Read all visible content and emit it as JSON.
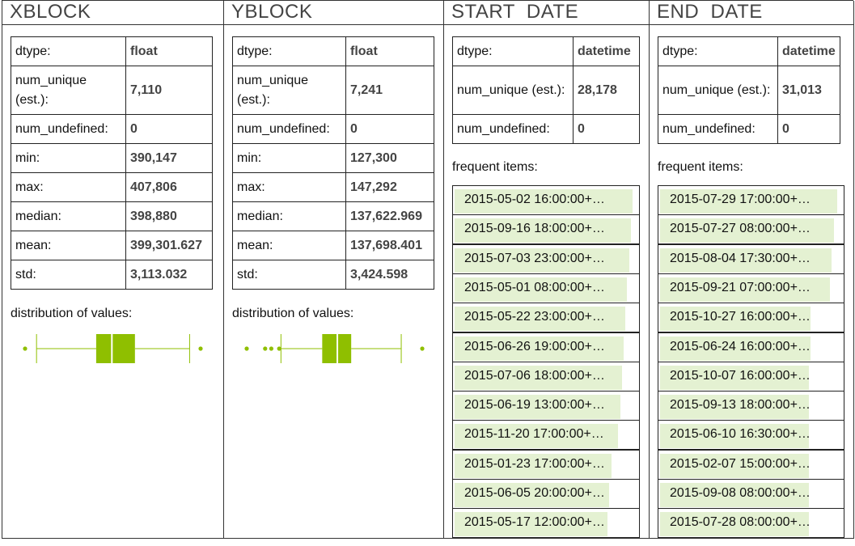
{
  "columns": [
    {
      "title": "XBLOCK",
      "stats": [
        {
          "label": "dtype:",
          "value": "float"
        },
        {
          "label": "num_unique (est.):",
          "value": "7,110"
        },
        {
          "label": "num_undefined:",
          "value": "0"
        },
        {
          "label": "min:",
          "value": "390,147"
        },
        {
          "label": "max:",
          "value": "407,806"
        },
        {
          "label": "median:",
          "value": "398,880"
        },
        {
          "label": "mean:",
          "value": "399,301.627"
        },
        {
          "label": "std:",
          "value": "3,113.032"
        }
      ],
      "distribution_label": "distribution of values:"
    },
    {
      "title": "YBLOCK",
      "stats": [
        {
          "label": "dtype:",
          "value": "float"
        },
        {
          "label": "num_unique (est.):",
          "value": "7,241"
        },
        {
          "label": "num_undefined:",
          "value": "0"
        },
        {
          "label": "min:",
          "value": "127,300"
        },
        {
          "label": "max:",
          "value": "147,292"
        },
        {
          "label": "median:",
          "value": "137,622.969"
        },
        {
          "label": "mean:",
          "value": "137,698.401"
        },
        {
          "label": "std:",
          "value": "3,424.598"
        }
      ],
      "distribution_label": "distribution of values:"
    },
    {
      "title": "START  DATE",
      "stats": [
        {
          "label": "dtype:",
          "value": "datetime"
        },
        {
          "label": "num_unique (est.):",
          "value": "28,178"
        },
        {
          "label": "num_undefined:",
          "value": "0"
        }
      ],
      "frequent_label": "frequent items:",
      "frequent": [
        {
          "text": "2015-05-02 16:00:00+…",
          "share": 1.0
        },
        {
          "text": "2015-09-16 18:00:00+…",
          "share": 0.99
        },
        {
          "text": "2015-07-03 23:00:00+…",
          "share": 0.98
        },
        {
          "text": "2015-05-01 08:00:00+…",
          "share": 0.97
        },
        {
          "text": "2015-05-22 23:00:00+…",
          "share": 0.96
        },
        {
          "text": "2015-06-26 19:00:00+…",
          "share": 0.95
        },
        {
          "text": "2015-07-06 18:00:00+…",
          "share": 0.94
        },
        {
          "text": "2015-06-19 13:00:00+…",
          "share": 0.93
        },
        {
          "text": "2015-11-20 17:00:00+…",
          "share": 0.92
        },
        {
          "text": "2015-01-23 17:00:00+…",
          "share": 0.88
        },
        {
          "text": "2015-06-05 20:00:00+…",
          "share": 0.87
        },
        {
          "text": "2015-05-17 12:00:00+…",
          "share": 0.86
        }
      ]
    },
    {
      "title": "END  DATE",
      "stats": [
        {
          "label": "dtype:",
          "value": "datetime"
        },
        {
          "label": "num_unique (est.):",
          "value": "31,013"
        },
        {
          "label": "num_undefined:",
          "value": "0"
        }
      ],
      "frequent_label": "frequent items:",
      "frequent": [
        {
          "text": "2015-07-29 17:00:00+…",
          "share": 1.0
        },
        {
          "text": "2015-07-27 08:00:00+…",
          "share": 0.98
        },
        {
          "text": "2015-08-04 17:30:00+…",
          "share": 0.97
        },
        {
          "text": "2015-09-21 07:00:00+…",
          "share": 0.96
        },
        {
          "text": "2015-10-27 16:00:00+…",
          "share": 0.85
        },
        {
          "text": "2015-06-24 16:00:00+…",
          "share": 0.85
        },
        {
          "text": "2015-10-07 16:00:00+…",
          "share": 0.84
        },
        {
          "text": "2015-09-13 18:00:00+…",
          "share": 0.84
        },
        {
          "text": "2015-06-10 16:30:00+…",
          "share": 0.84
        },
        {
          "text": "2015-02-07 15:00:00+…",
          "share": 0.84
        },
        {
          "text": "2015-09-08 08:00:00+…",
          "share": 0.84
        },
        {
          "text": "2015-07-28 08:00:00+…",
          "share": 0.84
        }
      ]
    }
  ],
  "boxplots": [
    {
      "min": 390147,
      "q1": 397300,
      "median": 398880,
      "q3": 401200,
      "max": 407806,
      "whisker_low": 391300,
      "whisker_high": 406700,
      "outliers": [
        390147,
        407806
      ]
    },
    {
      "min": 127300,
      "q1": 135900,
      "median": 137622.969,
      "q3": 139200,
      "max": 147292,
      "whisker_low": 131200,
      "whisker_high": 144900,
      "outliers": [
        127300,
        129400,
        130100,
        131000,
        147292
      ]
    }
  ],
  "colors": {
    "accent": "#8fbf00",
    "bar_fill": "#e4f1d2",
    "border": "#222222"
  }
}
